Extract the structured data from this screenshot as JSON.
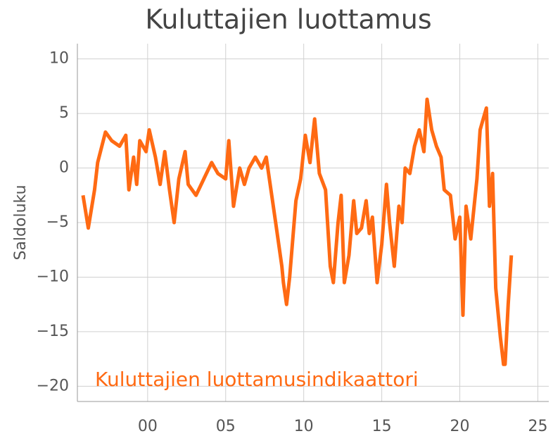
{
  "chart_data": {
    "type": "line",
    "title": "Kuluttajien luottamus",
    "y_label": "Saldoluku",
    "x": [
      1995.86,
      1996.2,
      1996.6,
      1996.8,
      1997.3,
      1997.7,
      1998.2,
      1998.6,
      1998.8,
      1999.1,
      1999.3,
      1999.5,
      1999.9,
      2000.1,
      2000.5,
      2000.8,
      2001.1,
      2001.4,
      2001.7,
      2002.0,
      2002.4,
      2002.6,
      2003.1,
      2003.6,
      2004.1,
      2004.5,
      2005.0,
      2005.2,
      2005.5,
      2005.9,
      2006.2,
      2006.5,
      2006.9,
      2007.3,
      2007.6,
      2007.9,
      2008.2,
      2008.6,
      2008.7,
      2008.9,
      2009.1,
      2009.5,
      2009.8,
      2010.1,
      2010.4,
      2010.7,
      2011.0,
      2011.4,
      2011.7,
      2011.9,
      2012.2,
      2012.4,
      2012.6,
      2012.9,
      2013.2,
      2013.4,
      2013.7,
      2014.0,
      2014.2,
      2014.4,
      2014.7,
      2015.0,
      2015.3,
      2015.5,
      2015.8,
      2016.1,
      2016.3,
      2016.5,
      2016.8,
      2017.1,
      2017.4,
      2017.7,
      2017.9,
      2018.2,
      2018.5,
      2018.8,
      2019.0,
      2019.4,
      2019.7,
      2020.0,
      2020.2,
      2020.4,
      2020.7,
      2021.1,
      2021.3,
      2021.5,
      2021.7,
      2021.9,
      2022.1,
      2022.3,
      2022.6,
      2022.8,
      2022.9,
      2023.1,
      2023.3
    ],
    "series": [
      {
        "name": "Kuluttajien luottamusindikaattori",
        "color": "#ff6a13",
        "values": [
          -2.5,
          -5.5,
          -2,
          0.5,
          3.3,
          2.5,
          2,
          3,
          -2,
          1,
          -1.5,
          2.5,
          1.5,
          3.5,
          1,
          -1.5,
          1.5,
          -2,
          -5,
          -1,
          1.5,
          -1.5,
          -2.5,
          -1,
          0.5,
          -0.5,
          -1,
          2.5,
          -3.5,
          0,
          -1.5,
          0,
          1,
          0,
          1,
          -2,
          -5,
          -9,
          -10.5,
          -12.5,
          -10,
          -3,
          -1,
          3,
          0.5,
          4.5,
          -0.5,
          -2,
          -9,
          -10.5,
          -5,
          -2.5,
          -10.5,
          -8,
          -3,
          -6,
          -5.5,
          -3,
          -6,
          -4.5,
          -10.5,
          -7,
          -1.5,
          -5,
          -9,
          -3.5,
          -5,
          0,
          -0.5,
          2,
          3.5,
          1.5,
          6.3,
          3.5,
          2,
          1,
          -2,
          -2.5,
          -6.5,
          -4.5,
          -13.5,
          -3.5,
          -6.5,
          -1,
          3.5,
          4.5,
          5.5,
          -3.5,
          -0.5,
          -11,
          -15.5,
          -18,
          -18,
          -12.5,
          -8
        ]
      }
    ],
    "xlim": [
      1995.5,
      2025.7
    ],
    "xticks": [
      {
        "value": 2000,
        "label": "00"
      },
      {
        "value": 2005,
        "label": "05"
      },
      {
        "value": 2010,
        "label": "10"
      },
      {
        "value": 2015,
        "label": "15"
      },
      {
        "value": 2020,
        "label": "20"
      },
      {
        "value": 2025,
        "label": "25"
      }
    ],
    "ylim": [
      -21.4,
      11.4
    ],
    "yticks": [
      {
        "value": -20,
        "label": "−20"
      },
      {
        "value": -15,
        "label": "−15"
      },
      {
        "value": -10,
        "label": "−10"
      },
      {
        "value": -5,
        "label": "−5"
      },
      0,
      5,
      10
    ],
    "grid": true
  }
}
